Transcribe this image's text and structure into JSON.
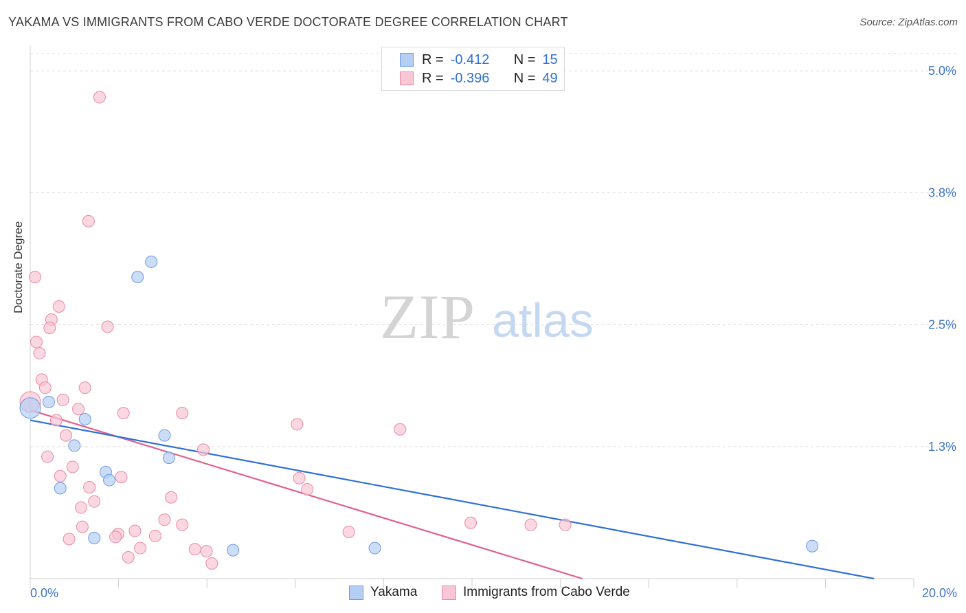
{
  "header": {
    "title": "YAKAMA VS IMMIGRANTS FROM CABO VERDE DOCTORATE DEGREE CORRELATION CHART",
    "source": "Source: ZipAtlas.com"
  },
  "watermark": {
    "zip": "ZIP",
    "atlas": "atlas"
  },
  "legend": {
    "rows": [
      {
        "r_label": "R =",
        "r_value": "-0.412",
        "n_label": "N =",
        "n_value": "15"
      },
      {
        "r_label": "R =",
        "r_value": "-0.396",
        "n_label": "N =",
        "n_value": "49"
      }
    ]
  },
  "bottom_legend": {
    "series1": "Yakama",
    "series2": "Immigrants from Cabo Verde"
  },
  "colors": {
    "blue_fill": "#b5cff3",
    "blue_stroke": "#6d9be0",
    "blue_line": "#2f6fd6",
    "pink_fill": "#f8c6d4",
    "pink_stroke": "#e88aa6",
    "pink_line": "#e0608c",
    "tick_label": "#3f74c9"
  },
  "chart_data": {
    "type": "scatter",
    "title": "YAKAMA VS IMMIGRANTS FROM CABO VERDE DOCTORATE DEGREE CORRELATION CHART",
    "xlabel": "",
    "ylabel": "Doctorate Degree",
    "xlim": [
      0,
      20
    ],
    "ylim": [
      0,
      5.17
    ],
    "x_tick_labels": [
      "0.0%",
      "20.0%"
    ],
    "y_ticks": [
      {
        "value": 5.0,
        "label": "5.0%"
      },
      {
        "value": 3.8,
        "label": "3.8%"
      },
      {
        "value": 2.5,
        "label": "2.5%"
      },
      {
        "value": 1.3,
        "label": "1.3%"
      }
    ],
    "series": [
      {
        "name": "Yakama",
        "r": -0.412,
        "n": 15,
        "trend": {
          "x0": 0,
          "y0": 1.56,
          "x1": 19.1,
          "y1": 0.0
        },
        "points": [
          {
            "x": 0.0,
            "y": 1.68,
            "big": true
          },
          {
            "x": 0.42,
            "y": 1.74
          },
          {
            "x": 1.24,
            "y": 1.57
          },
          {
            "x": 1.0,
            "y": 1.31
          },
          {
            "x": 0.68,
            "y": 0.89
          },
          {
            "x": 2.43,
            "y": 2.97
          },
          {
            "x": 2.74,
            "y": 3.12
          },
          {
            "x": 3.04,
            "y": 1.41
          },
          {
            "x": 3.14,
            "y": 1.19
          },
          {
            "x": 1.71,
            "y": 1.05
          },
          {
            "x": 1.79,
            "y": 0.97
          },
          {
            "x": 1.45,
            "y": 0.4
          },
          {
            "x": 4.59,
            "y": 0.28
          },
          {
            "x": 7.8,
            "y": 0.3
          },
          {
            "x": 17.7,
            "y": 0.32
          }
        ]
      },
      {
        "name": "Immigrants from Cabo Verde",
        "r": -0.396,
        "n": 49,
        "trend": {
          "x0": 0,
          "y0": 1.66,
          "x1": 12.5,
          "y1": 0.0
        },
        "points": [
          {
            "x": 1.57,
            "y": 4.74
          },
          {
            "x": 1.32,
            "y": 3.52
          },
          {
            "x": 0.11,
            "y": 2.97
          },
          {
            "x": 0.65,
            "y": 2.68
          },
          {
            "x": 0.48,
            "y": 2.55
          },
          {
            "x": 0.44,
            "y": 2.47
          },
          {
            "x": 1.75,
            "y": 2.48
          },
          {
            "x": 0.14,
            "y": 2.33
          },
          {
            "x": 0.21,
            "y": 2.22
          },
          {
            "x": 0.26,
            "y": 1.96
          },
          {
            "x": 0.34,
            "y": 1.88
          },
          {
            "x": 1.24,
            "y": 1.88
          },
          {
            "x": 0.0,
            "y": 1.74,
            "big": true
          },
          {
            "x": 0.74,
            "y": 1.76
          },
          {
            "x": 1.09,
            "y": 1.67
          },
          {
            "x": 2.11,
            "y": 1.63
          },
          {
            "x": 3.44,
            "y": 1.63
          },
          {
            "x": 0.59,
            "y": 1.56
          },
          {
            "x": 6.04,
            "y": 1.52
          },
          {
            "x": 8.37,
            "y": 1.47
          },
          {
            "x": 0.81,
            "y": 1.41
          },
          {
            "x": 3.92,
            "y": 1.27
          },
          {
            "x": 0.39,
            "y": 1.2
          },
          {
            "x": 0.96,
            "y": 1.1
          },
          {
            "x": 0.68,
            "y": 1.01
          },
          {
            "x": 2.06,
            "y": 1.0
          },
          {
            "x": 6.09,
            "y": 0.99
          },
          {
            "x": 1.34,
            "y": 0.9
          },
          {
            "x": 6.27,
            "y": 0.88
          },
          {
            "x": 3.19,
            "y": 0.8
          },
          {
            "x": 1.45,
            "y": 0.76
          },
          {
            "x": 1.15,
            "y": 0.7
          },
          {
            "x": 3.04,
            "y": 0.58
          },
          {
            "x": 9.97,
            "y": 0.55
          },
          {
            "x": 11.33,
            "y": 0.53
          },
          {
            "x": 12.11,
            "y": 0.53
          },
          {
            "x": 3.44,
            "y": 0.53
          },
          {
            "x": 1.18,
            "y": 0.51
          },
          {
            "x": 2.37,
            "y": 0.47
          },
          {
            "x": 7.21,
            "y": 0.46
          },
          {
            "x": 1.99,
            "y": 0.44
          },
          {
            "x": 1.93,
            "y": 0.41
          },
          {
            "x": 2.83,
            "y": 0.42
          },
          {
            "x": 0.88,
            "y": 0.39
          },
          {
            "x": 2.49,
            "y": 0.3
          },
          {
            "x": 3.73,
            "y": 0.29
          },
          {
            "x": 3.99,
            "y": 0.27
          },
          {
            "x": 2.22,
            "y": 0.21
          },
          {
            "x": 4.11,
            "y": 0.15
          }
        ]
      }
    ]
  }
}
